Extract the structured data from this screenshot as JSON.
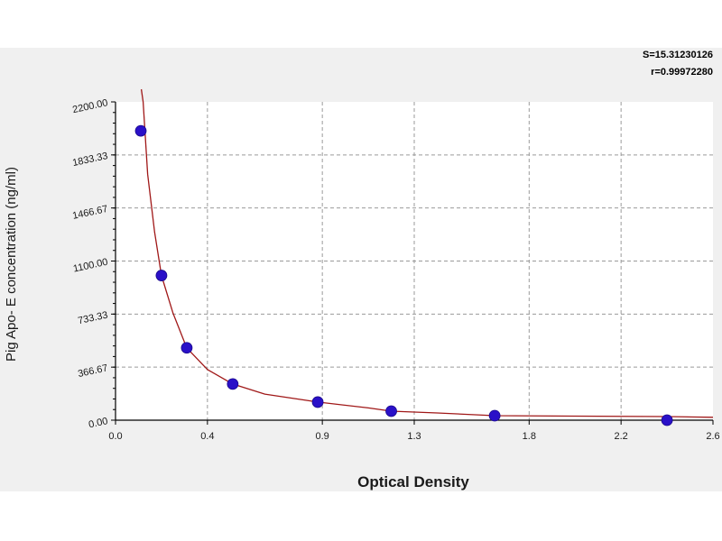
{
  "stats": {
    "s_line": "S=15.31230126",
    "r_line": "r=0.99972280"
  },
  "colors": {
    "panel_bg": "#f0f0f0",
    "plot_bg": "#ffffff",
    "curve": "#a01818",
    "point": "#2a10c8",
    "grid": "#9a9a9a"
  },
  "chart_data": {
    "type": "scatter",
    "title": "",
    "xlabel": "Optical Density",
    "ylabel": "Pig Apo- E concentration (ng/ml)",
    "xlim": [
      0.0,
      2.6
    ],
    "ylim": [
      0,
      2200
    ],
    "x_ticks": [
      0.0,
      0.4,
      0.9,
      1.3,
      1.8,
      2.2,
      2.6
    ],
    "x_tick_labels": [
      "0.0",
      "0.4",
      "0.9",
      "1.3",
      "1.8",
      "2.2",
      "2.6"
    ],
    "y_ticks": [
      0,
      366.67,
      733.33,
      1100,
      1466.67,
      1833.33,
      2200
    ],
    "y_tick_labels": [
      "0.00",
      "366.67",
      "733.33",
      "1100.00",
      "1466.67",
      "1833.33",
      "2200.00"
    ],
    "grid": true,
    "series": [
      {
        "x": [
          0.11,
          0.2,
          0.31,
          0.51,
          0.88,
          1.2,
          1.65,
          2.4
        ],
        "y": [
          2000,
          1000,
          500,
          250,
          125,
          62.5,
          31.25,
          0
        ]
      }
    ],
    "fit_curve": {
      "x": [
        0.12,
        0.14,
        0.17,
        0.2,
        0.25,
        0.31,
        0.4,
        0.51,
        0.65,
        0.88,
        1.1,
        1.2,
        1.4,
        1.65,
        2.0,
        2.4,
        2.6
      ],
      "y": [
        2200,
        1700,
        1300,
        1000,
        740,
        500,
        350,
        250,
        180,
        125,
        85,
        62.5,
        50,
        31.25,
        28,
        25,
        20
      ]
    }
  }
}
